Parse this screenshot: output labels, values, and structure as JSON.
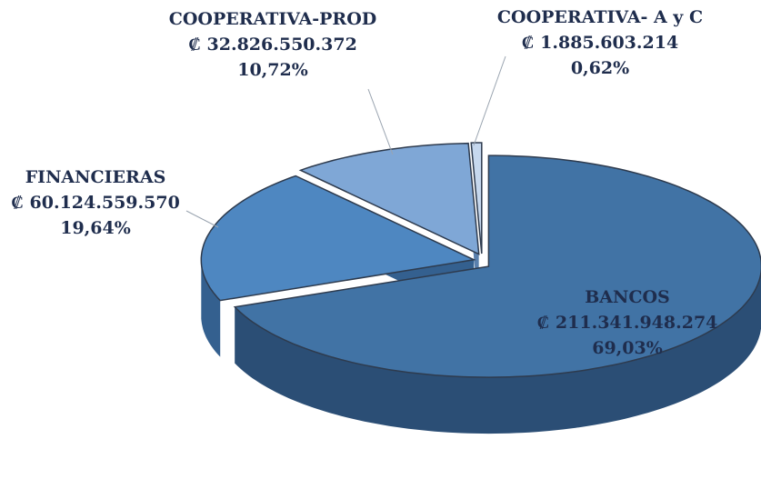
{
  "chart_data": {
    "type": "pie",
    "categories": [
      "BANCOS",
      "FINANCIERAS",
      "COOPERATIVA-PROD",
      "COOPERATIVA- A y C"
    ],
    "values": [
      211341948274,
      60124559570,
      32826550372,
      1885603214
    ],
    "value_labels": [
      "₡ 211.341.948.274",
      "₡ 60.124.559.570",
      "₡ 32.826.550.372",
      "₡ 1.885.603.214"
    ],
    "percents": [
      69.03,
      19.64,
      10.72,
      0.62
    ],
    "percent_labels": [
      "69,03%",
      "19,64%",
      "10,72%",
      "0,62%"
    ],
    "colors": [
      "#4173a5",
      "#4e87c1",
      "#7fa7d6",
      "#c6d8ee"
    ],
    "side_colors": [
      "#2b4e75",
      "#34608f",
      "#5a80ad",
      "#8ea9c9"
    ]
  }
}
